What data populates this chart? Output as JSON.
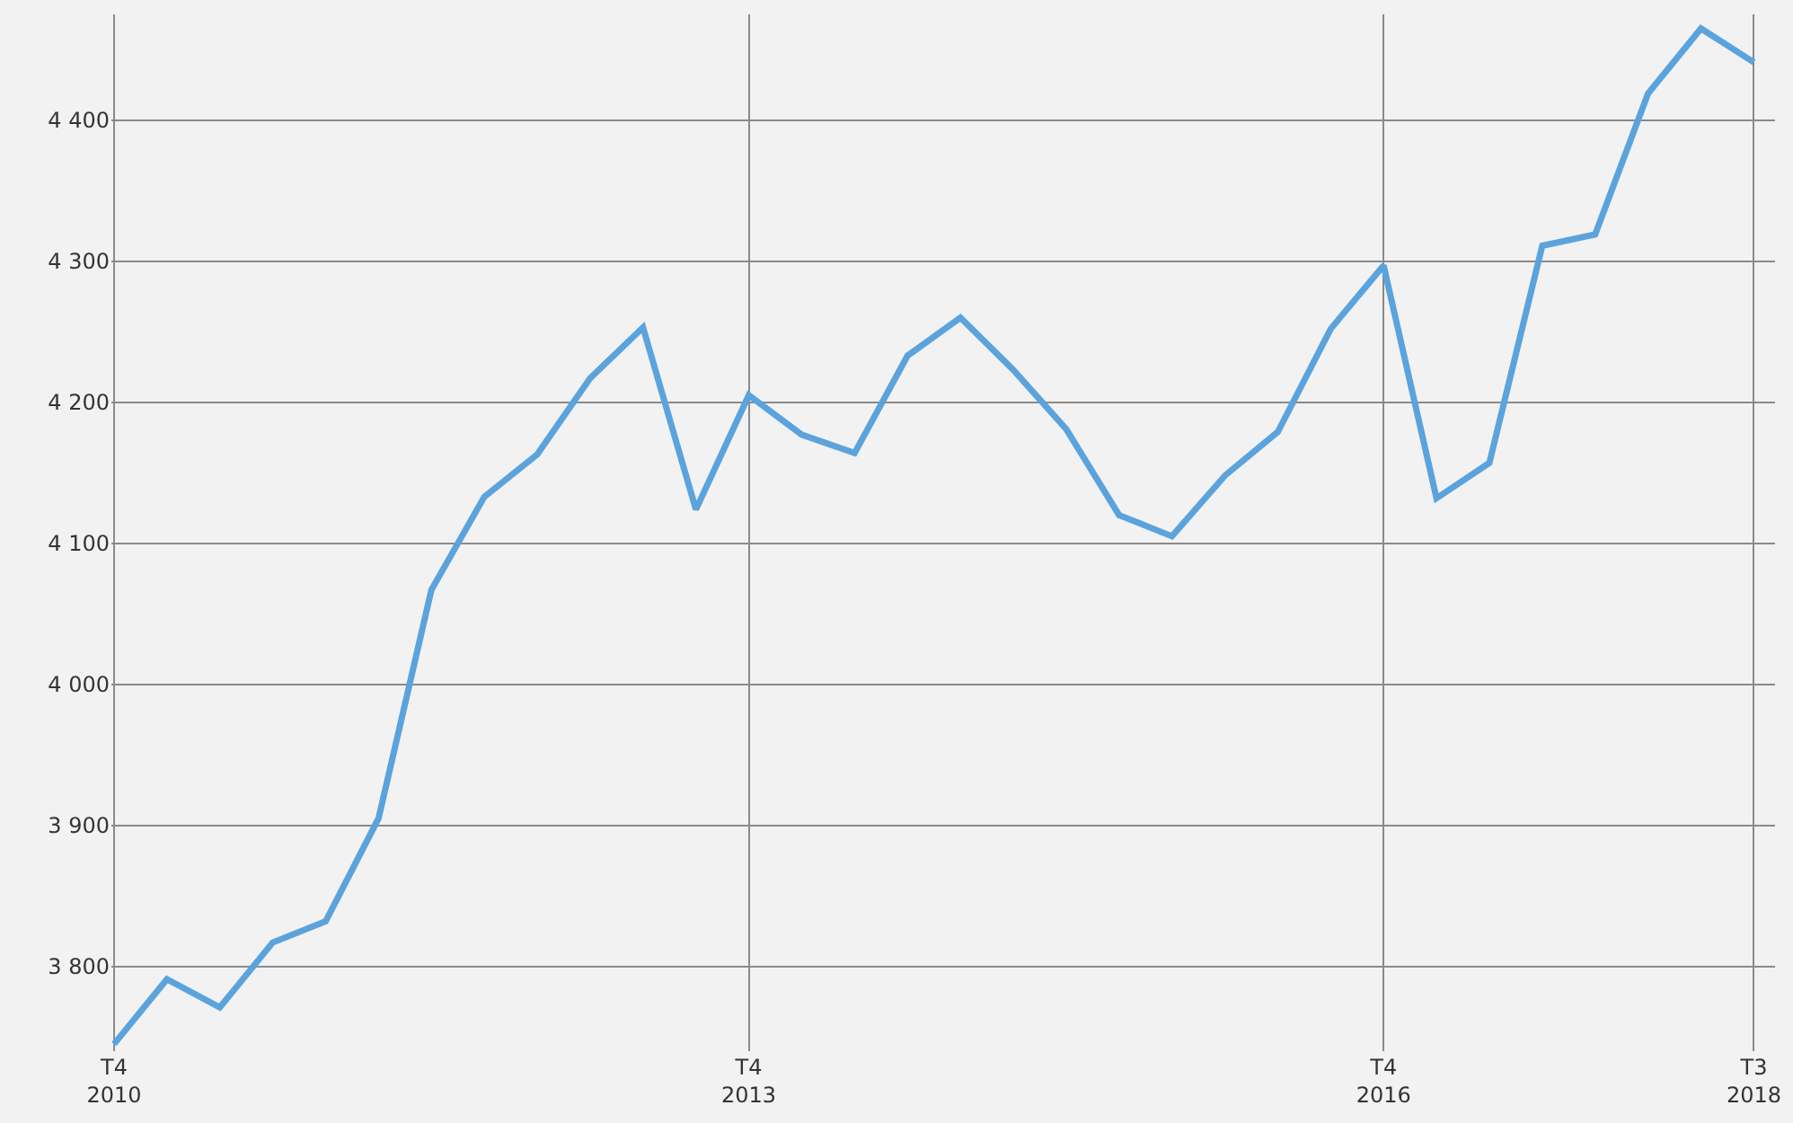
{
  "chart_data": {
    "type": "line",
    "categories": [
      "T4\n2010",
      null,
      null,
      null,
      null,
      null,
      null,
      null,
      null,
      null,
      null,
      null,
      "T4\n2013",
      null,
      null,
      null,
      null,
      null,
      null,
      null,
      null,
      null,
      null,
      null,
      "T4\n2016",
      null,
      null,
      null,
      null,
      null,
      null,
      "T3\n2018"
    ],
    "series": [
      {
        "color": "#5ba3dc",
        "values": [
          3745,
          3791,
          3771,
          3817,
          3832,
          3905,
          4067,
          4133,
          4163,
          4217,
          4253,
          4124,
          4205,
          4177,
          4164,
          4233,
          4260,
          4223,
          4181,
          4120,
          4105,
          4148,
          4179,
          4252,
          4297,
          4132,
          4157,
          4311,
          4319,
          4419,
          4465,
          4441
        ]
      }
    ],
    "ylim": [
      3740,
      4475
    ],
    "yticks": [
      {
        "value": 3800,
        "label": "3 800"
      },
      {
        "value": 3900,
        "label": "3 900"
      },
      {
        "value": 4000,
        "label": "4 000"
      },
      {
        "value": 4100,
        "label": "4 100"
      },
      {
        "value": 4200,
        "label": "4 200"
      },
      {
        "value": 4300,
        "label": "4 300"
      },
      {
        "value": 4400,
        "label": "4 400"
      }
    ],
    "grid": true,
    "marker": "none",
    "line_style": "solid"
  }
}
